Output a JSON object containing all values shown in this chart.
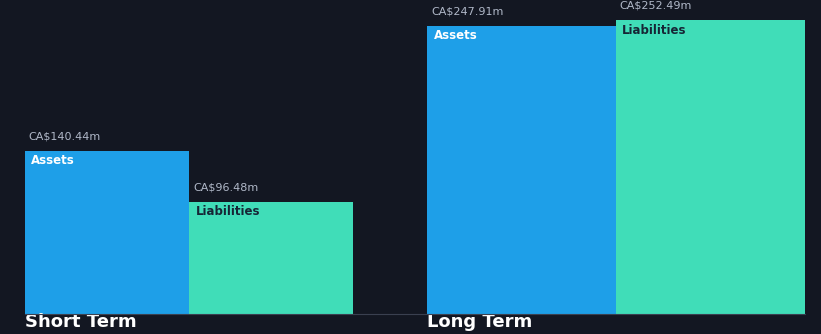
{
  "background_color": "#131722",
  "groups": [
    "Short Term",
    "Long Term"
  ],
  "categories": [
    "Assets",
    "Liabilities"
  ],
  "values": {
    "Short Term": {
      "Assets": 140.44,
      "Liabilities": 96.48
    },
    "Long Term": {
      "Assets": 247.91,
      "Liabilities": 252.49
    }
  },
  "colors": {
    "Assets": "#1E9FE8",
    "Liabilities": "#40DDB8"
  },
  "label_color_assets": "#ffffff",
  "label_color_liabilities": "#162535",
  "value_label_color": "#b0b8c8",
  "group_label_color": "#ffffff",
  "group_label_fontsize": 13,
  "bar_label_fontsize": 8.5,
  "value_label_fontsize": 8,
  "max_val": 252.49,
  "bottom_line_color": "#3a4050"
}
